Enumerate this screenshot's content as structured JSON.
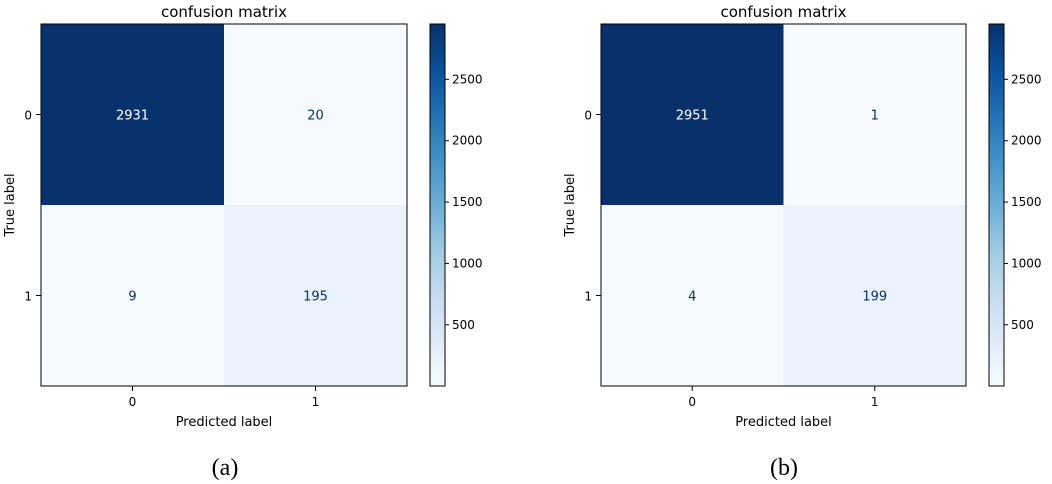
{
  "chart_data": [
    {
      "type": "heatmap",
      "title": "confusion matrix",
      "xlabel": "Predicted label",
      "ylabel": "True label",
      "x_categories": [
        "0",
        "1"
      ],
      "y_categories": [
        "0",
        "1"
      ],
      "values": [
        [
          2931,
          20
        ],
        [
          9,
          195
        ]
      ],
      "colorbar": {
        "ticks": [
          "500",
          "1000",
          "1500",
          "2000",
          "2500"
        ],
        "min": 1,
        "max": 2951
      },
      "caption": "(a)"
    },
    {
      "type": "heatmap",
      "title": "confusion matrix",
      "xlabel": "Predicted label",
      "ylabel": "True label",
      "x_categories": [
        "0",
        "1"
      ],
      "y_categories": [
        "0",
        "1"
      ],
      "values": [
        [
          2951,
          1
        ],
        [
          4,
          199
        ]
      ],
      "colorbar": {
        "ticks": [
          "500",
          "1000",
          "1500",
          "2000",
          "2500"
        ],
        "min": 1,
        "max": 2951
      },
      "caption": "(b)"
    }
  ],
  "colors": {
    "low": "#f7fbff",
    "high": "#08306b"
  }
}
